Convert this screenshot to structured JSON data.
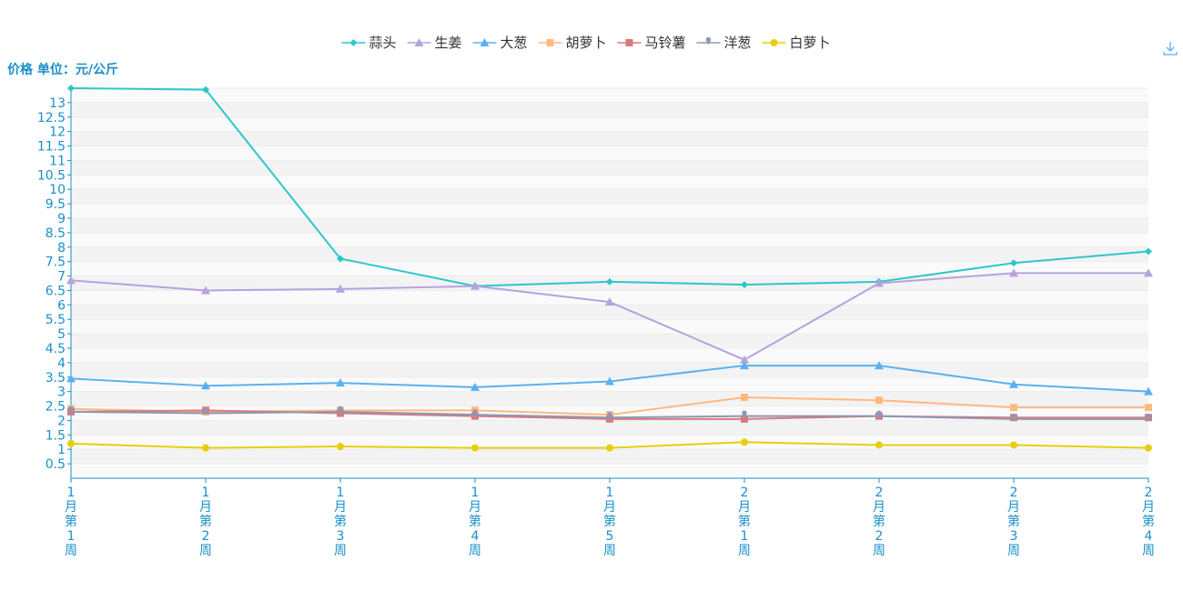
{
  "chart_data": {
    "type": "line",
    "ylabel": "价格 单位：元/公斤",
    "ylim": [
      0,
      13.5
    ],
    "y_ticks": [
      "0.5",
      "1",
      "1.5",
      "2",
      "2.5",
      "3",
      "3.5",
      "4",
      "4.5",
      "5",
      "5.5",
      "6",
      "6.5",
      "7",
      "7.5",
      "8",
      "8.5",
      "9",
      "9.5",
      "10",
      "10.5",
      "11",
      "11.5",
      "12",
      "12.5",
      "13"
    ],
    "categories": [
      "1月第1周",
      "1月第2周",
      "1月第3周",
      "1月第4周",
      "1月第5周",
      "2月第1周",
      "2月第2周",
      "2月第3周",
      "2月第4周"
    ],
    "legend_position": "top-center",
    "grid": "horizontal-bands",
    "series": [
      {
        "name": "蒜头",
        "color": "#2ec7c9",
        "symbol": "diamond",
        "values": [
          13.5,
          13.45,
          7.6,
          6.65,
          6.8,
          6.7,
          6.8,
          7.45,
          7.85
        ]
      },
      {
        "name": "生姜",
        "color": "#b6a2de",
        "symbol": "triangle",
        "values": [
          6.85,
          6.5,
          6.55,
          6.65,
          6.1,
          4.1,
          6.75,
          7.1,
          7.1
        ]
      },
      {
        "name": "大葱",
        "color": "#5ab1ef",
        "symbol": "triangle",
        "values": [
          3.45,
          3.2,
          3.3,
          3.15,
          3.35,
          3.9,
          3.9,
          3.25,
          3.0
        ]
      },
      {
        "name": "胡萝卜",
        "color": "#ffb980",
        "symbol": "square",
        "values": [
          2.4,
          2.3,
          2.35,
          2.35,
          2.2,
          2.8,
          2.7,
          2.45,
          2.45
        ]
      },
      {
        "name": "马铃薯",
        "color": "#d87a80",
        "symbol": "square",
        "values": [
          2.3,
          2.35,
          2.25,
          2.15,
          2.05,
          2.05,
          2.15,
          2.1,
          2.1
        ]
      },
      {
        "name": "洋葱",
        "color": "#8d98b3",
        "symbol": "pin",
        "values": [
          2.3,
          2.25,
          2.3,
          2.2,
          2.1,
          2.15,
          2.15,
          2.05,
          2.05
        ]
      },
      {
        "name": "白萝卜",
        "color": "#e5cf0d",
        "symbol": "circle",
        "values": [
          1.2,
          1.05,
          1.1,
          1.05,
          1.05,
          1.25,
          1.15,
          1.15,
          1.05
        ]
      }
    ]
  },
  "toolbar": {
    "download_icon": "download-icon",
    "icon_color": "#5ab1ef"
  }
}
